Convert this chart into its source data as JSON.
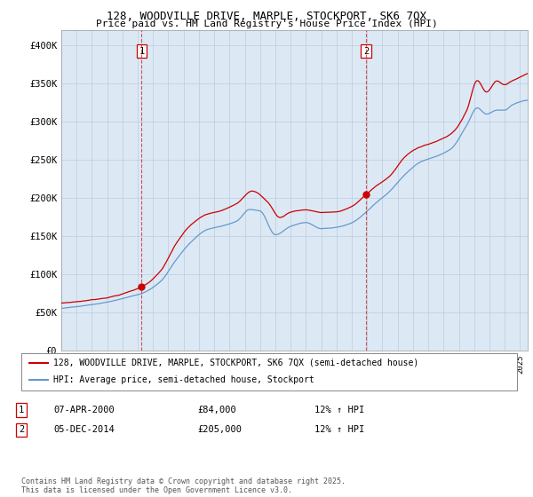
{
  "title1": "128, WOODVILLE DRIVE, MARPLE, STOCKPORT, SK6 7QX",
  "title2": "Price paid vs. HM Land Registry's House Price Index (HPI)",
  "background_color": "#dce9f5",
  "red_line_label": "128, WOODVILLE DRIVE, MARPLE, STOCKPORT, SK6 7QX (semi-detached house)",
  "blue_line_label": "HPI: Average price, semi-detached house, Stockport",
  "sale1_date": "07-APR-2000",
  "sale1_price": 84000,
  "sale1_hpi": "12% ↑ HPI",
  "sale2_date": "05-DEC-2014",
  "sale2_price": 205000,
  "sale2_hpi": "12% ↑ HPI",
  "footer": "Contains HM Land Registry data © Crown copyright and database right 2025.\nThis data is licensed under the Open Government Licence v3.0.",
  "ylim": [
    0,
    420000
  ],
  "yticks": [
    0,
    50000,
    100000,
    150000,
    200000,
    250000,
    300000,
    350000,
    400000
  ],
  "ytick_labels": [
    "£0",
    "£50K",
    "£100K",
    "£150K",
    "£200K",
    "£250K",
    "£300K",
    "£350K",
    "£400K"
  ],
  "vline1_x": 2000.25,
  "vline2_x": 2014.92,
  "dot1_x": 2000.25,
  "dot1_y": 84000,
  "dot2_x": 2014.92,
  "dot2_y": 205000,
  "red_color": "#cc0000",
  "blue_color": "#6699cc",
  "grid_color": "#bbccdd",
  "box_color": "#cc0000",
  "xlim_left": 1995.0,
  "xlim_right": 2025.5
}
